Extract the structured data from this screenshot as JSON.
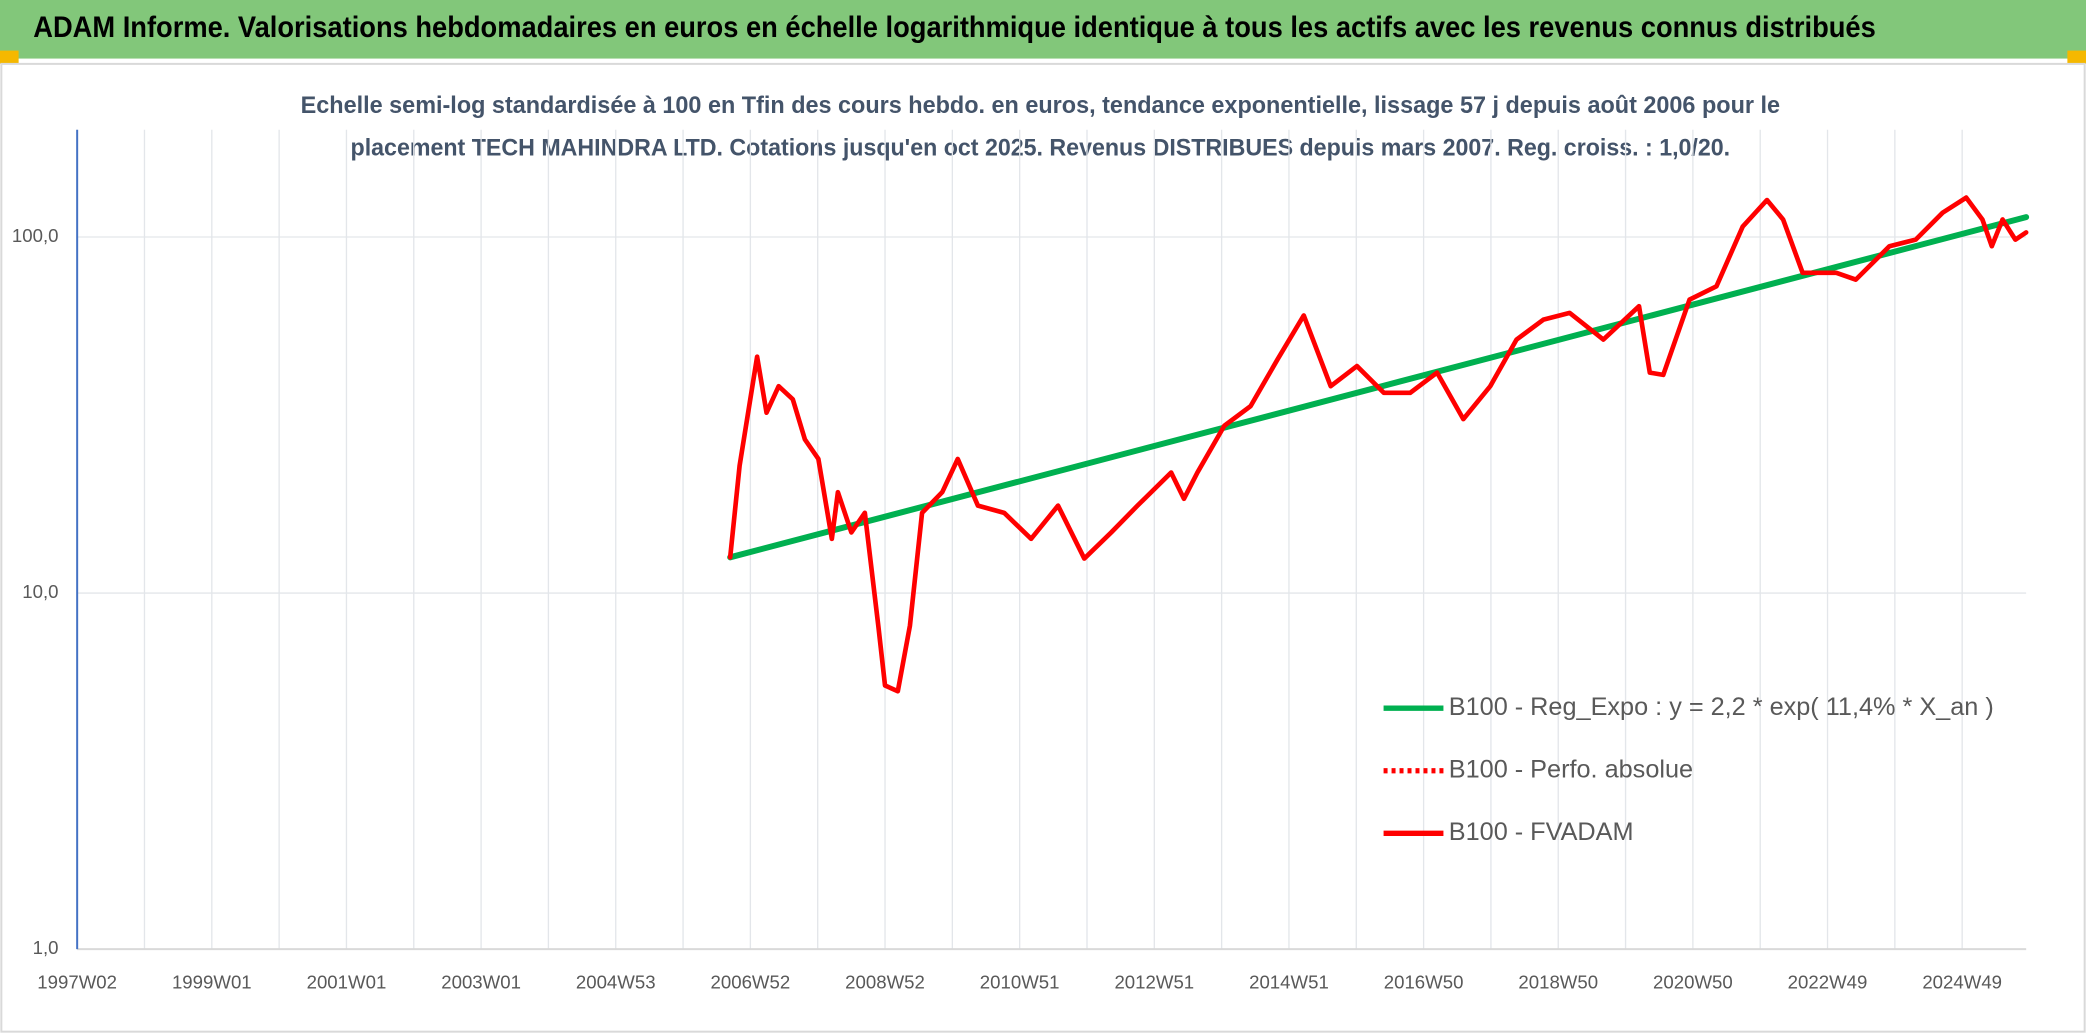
{
  "chart_data": {
    "type": "line",
    "title": "ADAM Informe. Valorisations hebdomadaires en euros en échelle logarithmique identique à tous les actifs avec les revenus connus distribués",
    "subtitle": [
      "Echelle semi-log standardisée à 100 en Tfin des cours hebdo. en euros, tendance exponentielle, lissage 57 j depuis août 2006 pour le",
      "placement TECH MAHINDRA LTD. Cotations jusqu'en oct 2025. Revenus DISTRIBUES depuis mars 2007. Reg. croiss. : 1,0/20."
    ],
    "log_scale": true,
    "grid": true,
    "legend": "right",
    "xlim": [
      1997,
      2025.95
    ],
    "xticks": [
      {
        "value": 1997,
        "label": "1997W02"
      },
      {
        "value": 1999,
        "label": "1999W01"
      },
      {
        "value": 2001,
        "label": "2001W01"
      },
      {
        "value": 2003,
        "label": "2003W01"
      },
      {
        "value": 2005,
        "label": "2004W53"
      },
      {
        "value": 2007,
        "label": "2006W52"
      },
      {
        "value": 2009,
        "label": "2008W52"
      },
      {
        "value": 2011,
        "label": "2010W51"
      },
      {
        "value": 2013,
        "label": "2012W51"
      },
      {
        "value": 2015,
        "label": "2014W51"
      },
      {
        "value": 2017,
        "label": "2016W50"
      },
      {
        "value": 2019,
        "label": "2018W50"
      },
      {
        "value": 2021,
        "label": "2020W50"
      },
      {
        "value": 2023,
        "label": "2022W49"
      },
      {
        "value": 2025,
        "label": "2024W49"
      }
    ],
    "x_minor_ticks": [
      1998,
      2000,
      2002,
      2004,
      2006,
      2008,
      2010,
      2012,
      2014,
      2016,
      2018,
      2020,
      2022,
      2024
    ],
    "ylim": [
      1,
      200
    ],
    "yticks": [
      {
        "value": 1,
        "label": "1,0"
      },
      {
        "value": 10,
        "label": "10,0"
      },
      {
        "value": 100,
        "label": "100,0"
      }
    ],
    "series": [
      {
        "name": "B100 - Reg_Expo : y = 2,2 * exp( 11,4% *  X_an )",
        "color": "#00b050",
        "line_style": "solid",
        "x": [
          2006.7,
          2025.95
        ],
        "values": [
          12.6,
          113.7
        ]
      },
      {
        "name": "B100 - Perfo. absolue",
        "color": "#ff0000",
        "line_style": "dotted",
        "x": [],
        "values": []
      },
      {
        "name": "B100 - FVADAM",
        "color": "#ff0000",
        "line_style": "solid",
        "x": [
          2006.7,
          2006.84,
          2007.1,
          2007.24,
          2007.42,
          2007.63,
          2007.81,
          2008.01,
          2008.21,
          2008.3,
          2008.5,
          2008.7,
          2008.9,
          2009.0,
          2009.19,
          2009.37,
          2009.55,
          2009.85,
          2010.08,
          2010.38,
          2010.77,
          2011.17,
          2011.57,
          2011.96,
          2012.36,
          2012.75,
          2013.25,
          2013.44,
          2013.64,
          2014.04,
          2014.43,
          2014.83,
          2015.22,
          2015.62,
          2016.01,
          2016.41,
          2016.8,
          2017.2,
          2017.59,
          2017.99,
          2018.38,
          2018.78,
          2019.17,
          2019.67,
          2020.2,
          2020.36,
          2020.56,
          2020.95,
          2021.35,
          2021.74,
          2022.1,
          2022.34,
          2022.63,
          2023.13,
          2023.42,
          2023.92,
          2024.31,
          2024.71,
          2025.06,
          2025.3,
          2025.44,
          2025.6,
          2025.79,
          2025.95
        ],
        "values": [
          12.6,
          22.8,
          46.1,
          32.1,
          38.1,
          35.0,
          27.0,
          23.8,
          14.2,
          19.2,
          14.8,
          16.8,
          8.1,
          5.5,
          5.3,
          8.1,
          16.8,
          19.2,
          23.8,
          17.6,
          16.8,
          14.2,
          17.6,
          12.5,
          14.8,
          17.6,
          21.8,
          18.4,
          21.8,
          29.5,
          33.5,
          45.3,
          60.2,
          38.1,
          43.4,
          36.5,
          36.5,
          41.6,
          30.8,
          38.1,
          51.5,
          58.6,
          61.2,
          51.5,
          63.9,
          41.6,
          41.0,
          66.7,
          72.7,
          107,
          127,
          112,
          79.3,
          79.3,
          75.9,
          94.2,
          98.3,
          117,
          129,
          112,
          94.2,
          112,
          98.3,
          103
        ]
      }
    ]
  }
}
